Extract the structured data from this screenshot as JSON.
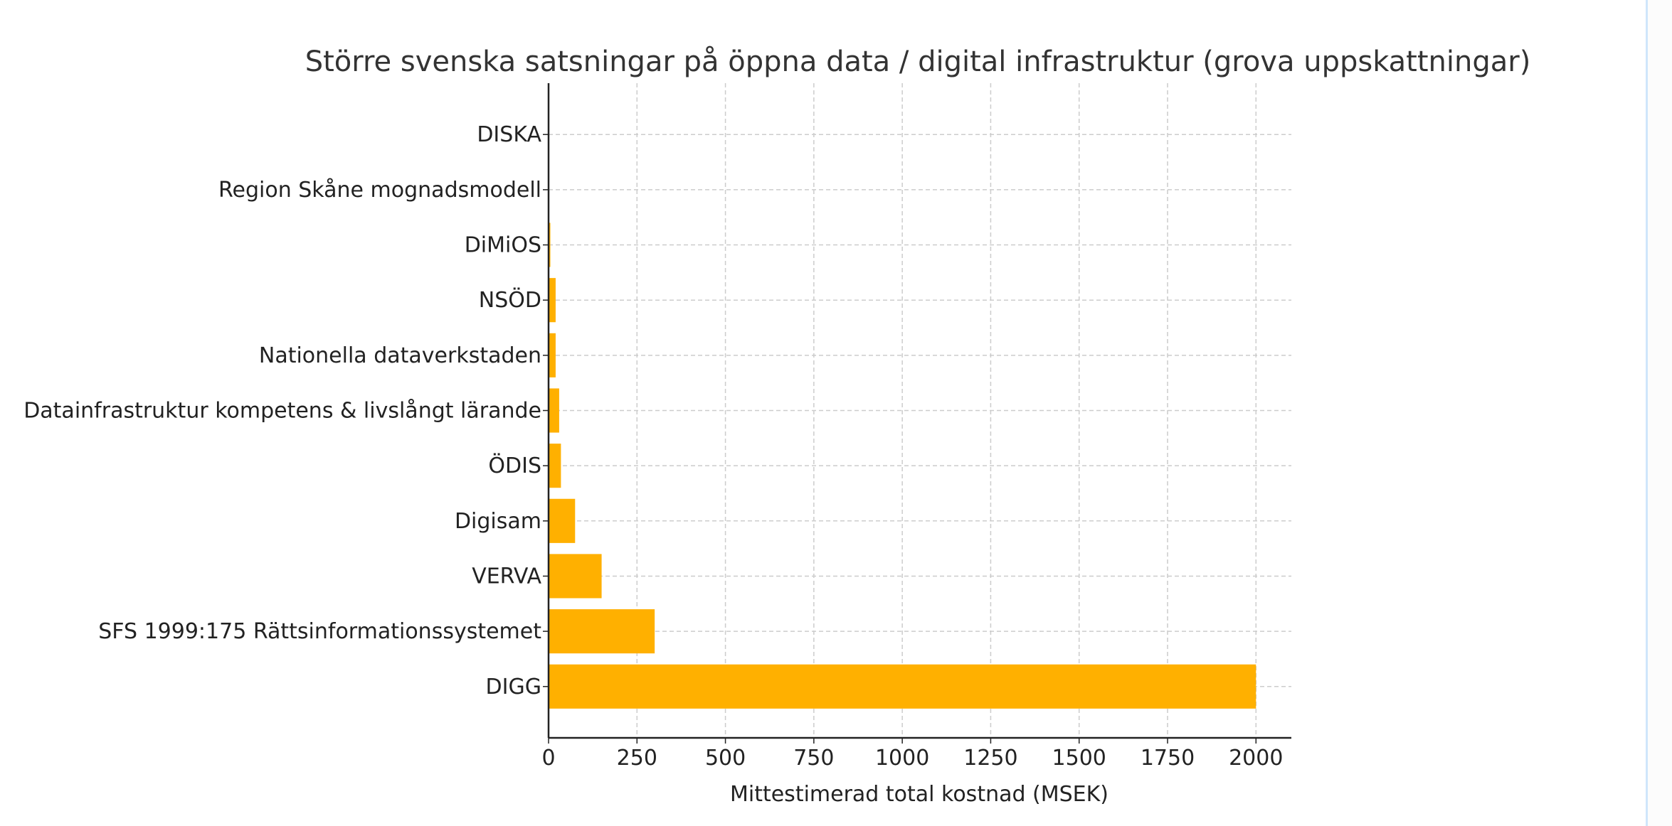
{
  "chart_data": {
    "type": "bar",
    "orientation": "horizontal",
    "title": "Större svenska satsningar på öppna data / digital infrastruktur (grova uppskattningar)",
    "xlabel": "Mittestimerad total kostnad (MSEK)",
    "ylabel": "",
    "categories": [
      "DIGG",
      "SFS 1999:175 Rättsinformationssystemet",
      "VERVA",
      "Digisam",
      "ÖDIS",
      "Datainfrastruktur kompetens & livslångt lärande",
      "Nationella dataverkstaden",
      "NSÖD",
      "DiMiOS",
      "Region Skåne mognadsmodell",
      "DISKA"
    ],
    "values": [
      2000,
      300,
      150,
      75,
      35,
      30,
      20,
      20,
      5,
      0,
      0
    ],
    "xlim": [
      0,
      2100
    ],
    "xticks": [
      "0",
      "250",
      "500",
      "750",
      "1000",
      "1250",
      "1500",
      "1750",
      "2000"
    ],
    "grid": true,
    "bar_color": "#FFB000"
  }
}
